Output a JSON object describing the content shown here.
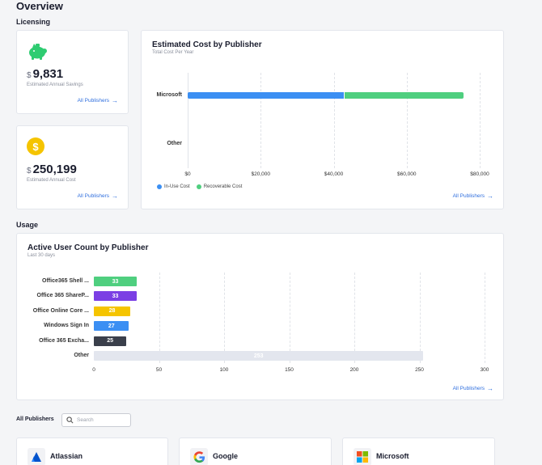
{
  "page": {
    "title": "Overview"
  },
  "licensing": {
    "label": "Licensing",
    "savings": {
      "currency": "$",
      "value": "9,831",
      "caption": "Estimated Annual Savings",
      "link": "All Publishers",
      "icon": "piggy-bank-icon",
      "color": "#2ecc71"
    },
    "cost": {
      "currency": "$",
      "value": "250,199",
      "caption": "Estimated Annual Cost",
      "link": "All Publishers",
      "icon": "dollar-coin-icon",
      "color": "#f5c400"
    }
  },
  "cost_chart": {
    "title": "Estimated Cost by Publisher",
    "subtitle": "Total Cost Per Year",
    "link": "All Publishers",
    "chart_data": {
      "type": "bar",
      "orientation": "horizontal",
      "stacked": true,
      "categories": [
        "Microsoft",
        "Other"
      ],
      "series": [
        {
          "name": "In-Use Cost",
          "color": "#3b8ff3",
          "values": [
            43000,
            0
          ]
        },
        {
          "name": "Recoverable Cost",
          "color": "#4fcf7f",
          "values": [
            32500,
            0
          ]
        }
      ],
      "xlim": [
        0,
        80000
      ],
      "xticks": [
        "$0",
        "$20,000",
        "$40,000",
        "$60,000",
        "$80,000"
      ],
      "xtick_values": [
        0,
        20000,
        40000,
        60000,
        80000
      ],
      "grid": true,
      "legend_position": "bottom-left"
    }
  },
  "usage": {
    "label": "Usage",
    "chart": {
      "title": "Active User Count by Publisher",
      "subtitle": "Last 30 days",
      "link": "All Publishers",
      "chart_data": {
        "type": "bar",
        "orientation": "horizontal",
        "categories": [
          "Office365 Shell ...",
          "Office 365 ShareP...",
          "Office Online Core ...",
          "Windows Sign In",
          "Office 365 Excha...",
          "Other"
        ],
        "values": [
          33,
          33,
          28,
          27,
          25,
          253
        ],
        "labels": [
          "33",
          "33",
          "28",
          "27",
          "25",
          "253"
        ],
        "colors": [
          "#4fcf7f",
          "#7b3fe4",
          "#f5c400",
          "#3b8ff3",
          "#3a3f4b",
          "#e3e6ee"
        ],
        "xlim": [
          0,
          300
        ],
        "xticks": [
          "0",
          "50",
          "100",
          "150",
          "200",
          "250",
          "300"
        ],
        "xtick_values": [
          0,
          50,
          100,
          150,
          200,
          250,
          300
        ],
        "grid": true
      }
    }
  },
  "publishers": {
    "label": "All Publishers",
    "search_placeholder": "Search",
    "items": [
      {
        "name": "Atlassian",
        "icon": "atlassian-logo-icon"
      },
      {
        "name": "Google",
        "icon": "google-logo-icon"
      },
      {
        "name": "Microsoft",
        "icon": "microsoft-logo-icon"
      }
    ]
  }
}
